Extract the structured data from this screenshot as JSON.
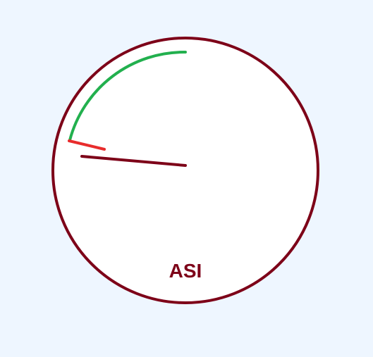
{
  "gauge": {
    "label": "ASI",
    "colors": {
      "page_background": "#eef6ff",
      "dial_face": "#ffffff",
      "dial_rim": "#7d0018",
      "needle": "#7d0018",
      "label": "#7d0018",
      "green_band": "#22b04e",
      "red_mark": "#e82c2c"
    }
  }
}
